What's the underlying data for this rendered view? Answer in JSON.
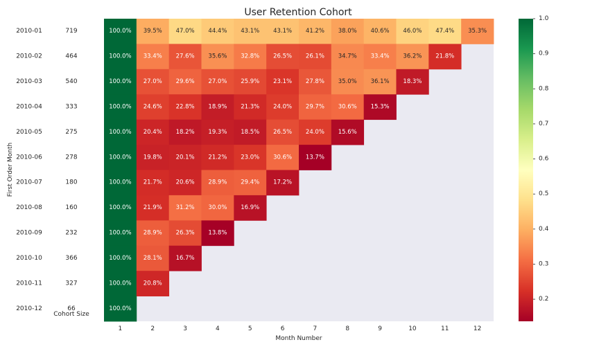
{
  "chart_data": {
    "type": "heatmap",
    "title": "User Retention Cohort",
    "xlabel": "Month Number",
    "ylabel": "First Order Month",
    "size_column_label": "Cohort Size",
    "columns": [
      "1",
      "2",
      "3",
      "4",
      "5",
      "6",
      "7",
      "8",
      "9",
      "10",
      "11",
      "12"
    ],
    "rows": [
      {
        "month": "2010-01",
        "size": "719",
        "values": [
          1.0,
          0.395,
          0.47,
          0.444,
          0.431,
          0.431,
          0.412,
          0.38,
          0.406,
          0.46,
          0.474,
          0.353
        ],
        "labels": [
          "100.0%",
          "39.5%",
          "47.0%",
          "44.4%",
          "43.1%",
          "43.1%",
          "41.2%",
          "38.0%",
          "40.6%",
          "46.0%",
          "47.4%",
          "35.3%"
        ]
      },
      {
        "month": "2010-02",
        "size": "464",
        "values": [
          1.0,
          0.334,
          0.276,
          0.356,
          0.328,
          0.265,
          0.261,
          0.347,
          0.334,
          0.362,
          0.218
        ],
        "labels": [
          "100.0%",
          "33.4%",
          "27.6%",
          "35.6%",
          "32.8%",
          "26.5%",
          "26.1%",
          "34.7%",
          "33.4%",
          "36.2%",
          "21.8%"
        ]
      },
      {
        "month": "2010-03",
        "size": "540",
        "values": [
          1.0,
          0.27,
          0.296,
          0.27,
          0.259,
          0.231,
          0.278,
          0.35,
          0.361,
          0.183
        ],
        "labels": [
          "100.0%",
          "27.0%",
          "29.6%",
          "27.0%",
          "25.9%",
          "23.1%",
          "27.8%",
          "35.0%",
          "36.1%",
          "18.3%"
        ]
      },
      {
        "month": "2010-04",
        "size": "333",
        "values": [
          1.0,
          0.246,
          0.228,
          0.189,
          0.213,
          0.24,
          0.297,
          0.306,
          0.153
        ],
        "labels": [
          "100.0%",
          "24.6%",
          "22.8%",
          "18.9%",
          "21.3%",
          "24.0%",
          "29.7%",
          "30.6%",
          "15.3%"
        ]
      },
      {
        "month": "2010-05",
        "size": "275",
        "values": [
          1.0,
          0.204,
          0.182,
          0.193,
          0.185,
          0.265,
          0.24,
          0.156
        ],
        "labels": [
          "100.0%",
          "20.4%",
          "18.2%",
          "19.3%",
          "18.5%",
          "26.5%",
          "24.0%",
          "15.6%"
        ]
      },
      {
        "month": "2010-06",
        "size": "278",
        "values": [
          1.0,
          0.198,
          0.201,
          0.212,
          0.23,
          0.306,
          0.137
        ],
        "labels": [
          "100.0%",
          "19.8%",
          "20.1%",
          "21.2%",
          "23.0%",
          "30.6%",
          "13.7%"
        ]
      },
      {
        "month": "2010-07",
        "size": "180",
        "values": [
          1.0,
          0.217,
          0.206,
          0.289,
          0.294,
          0.172
        ],
        "labels": [
          "100.0%",
          "21.7%",
          "20.6%",
          "28.9%",
          "29.4%",
          "17.2%"
        ]
      },
      {
        "month": "2010-08",
        "size": "160",
        "values": [
          1.0,
          0.219,
          0.312,
          0.3,
          0.169
        ],
        "labels": [
          "100.0%",
          "21.9%",
          "31.2%",
          "30.0%",
          "16.9%"
        ]
      },
      {
        "month": "2010-09",
        "size": "232",
        "values": [
          1.0,
          0.289,
          0.263,
          0.138
        ],
        "labels": [
          "100.0%",
          "28.9%",
          "26.3%",
          "13.8%"
        ]
      },
      {
        "month": "2010-10",
        "size": "366",
        "values": [
          1.0,
          0.281,
          0.167
        ],
        "labels": [
          "100.0%",
          "28.1%",
          "16.7%"
        ]
      },
      {
        "month": "2010-11",
        "size": "327",
        "values": [
          1.0,
          0.208
        ],
        "labels": [
          "100.0%",
          "20.8%"
        ]
      },
      {
        "month": "2010-12",
        "size": "66",
        "values": [
          1.0
        ],
        "labels": [
          "100.0%"
        ]
      }
    ],
    "colorbar": {
      "colormap": "RdYlGn",
      "range": [
        0.137,
        1.0
      ],
      "ticks": [
        "0.2",
        "0.3",
        "0.4",
        "0.5",
        "0.6",
        "0.7",
        "0.8",
        "0.9",
        "1.0"
      ]
    },
    "empty_color": "#eaeaf2",
    "grid": false
  }
}
